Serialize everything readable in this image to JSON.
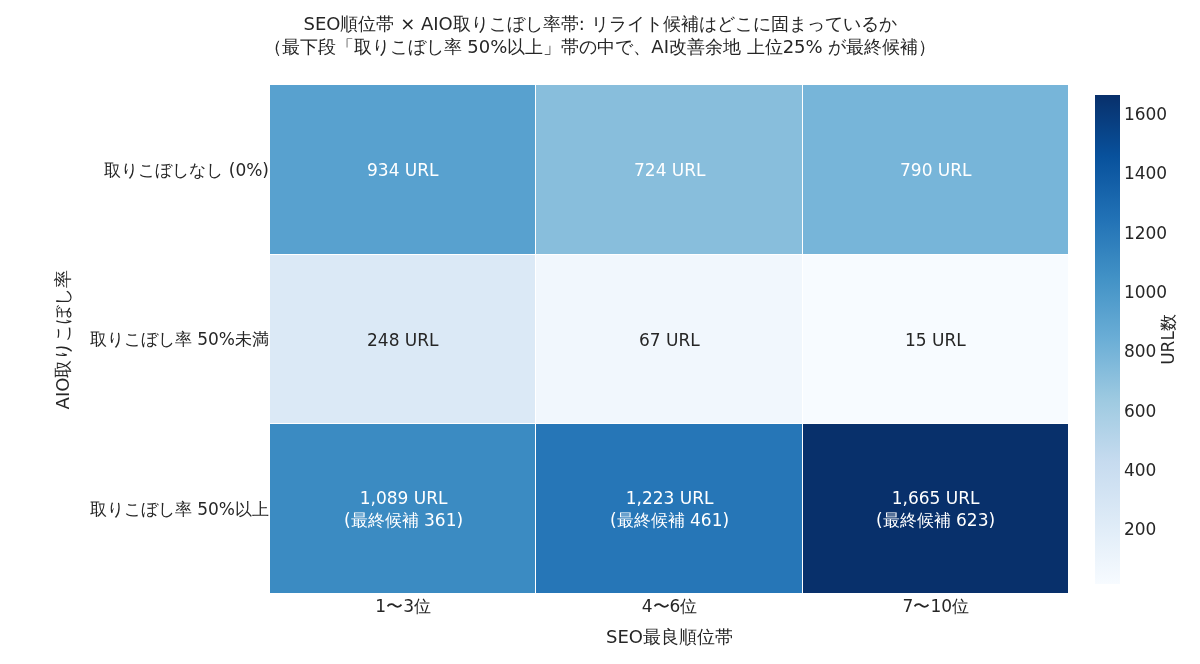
{
  "chart_data": {
    "type": "heatmap",
    "title": "SEO順位帯 × AIO取りこぼし率帯: リライト候補はどこに固まっているか",
    "subtitle": "（最下段「取りこぼし率 50%以上」帯の中で、AI改善余地 上位25% が最終候補）",
    "xlabel": "SEO最良順位帯",
    "ylabel": "AIO取りこぼし率",
    "clabel": "URL数",
    "categories": [
      "1〜3位",
      "4〜6位",
      "7〜10位"
    ],
    "y_categories": [
      "取りこぼしなし (0%)",
      "取りこぼし率 50%未満",
      "取りこぼし率 50%以上"
    ],
    "cells": [
      [
        934,
        724,
        790
      ],
      [
        248,
        67,
        15
      ],
      [
        1089,
        1223,
        1665
      ]
    ],
    "cell_labels": [
      [
        "934 URL",
        "724 URL",
        "790 URL"
      ],
      [
        "248 URL",
        "67 URL",
        "15 URL"
      ],
      [
        "1,089 URL\n(最終候補 361)",
        "1,223 URL\n(最終候補 461)",
        "1,665 URL\n(最終候補 623)"
      ]
    ],
    "clim": [
      15,
      1665
    ],
    "cticks": [
      200,
      400,
      600,
      800,
      1000,
      1200,
      1400,
      1600
    ]
  }
}
